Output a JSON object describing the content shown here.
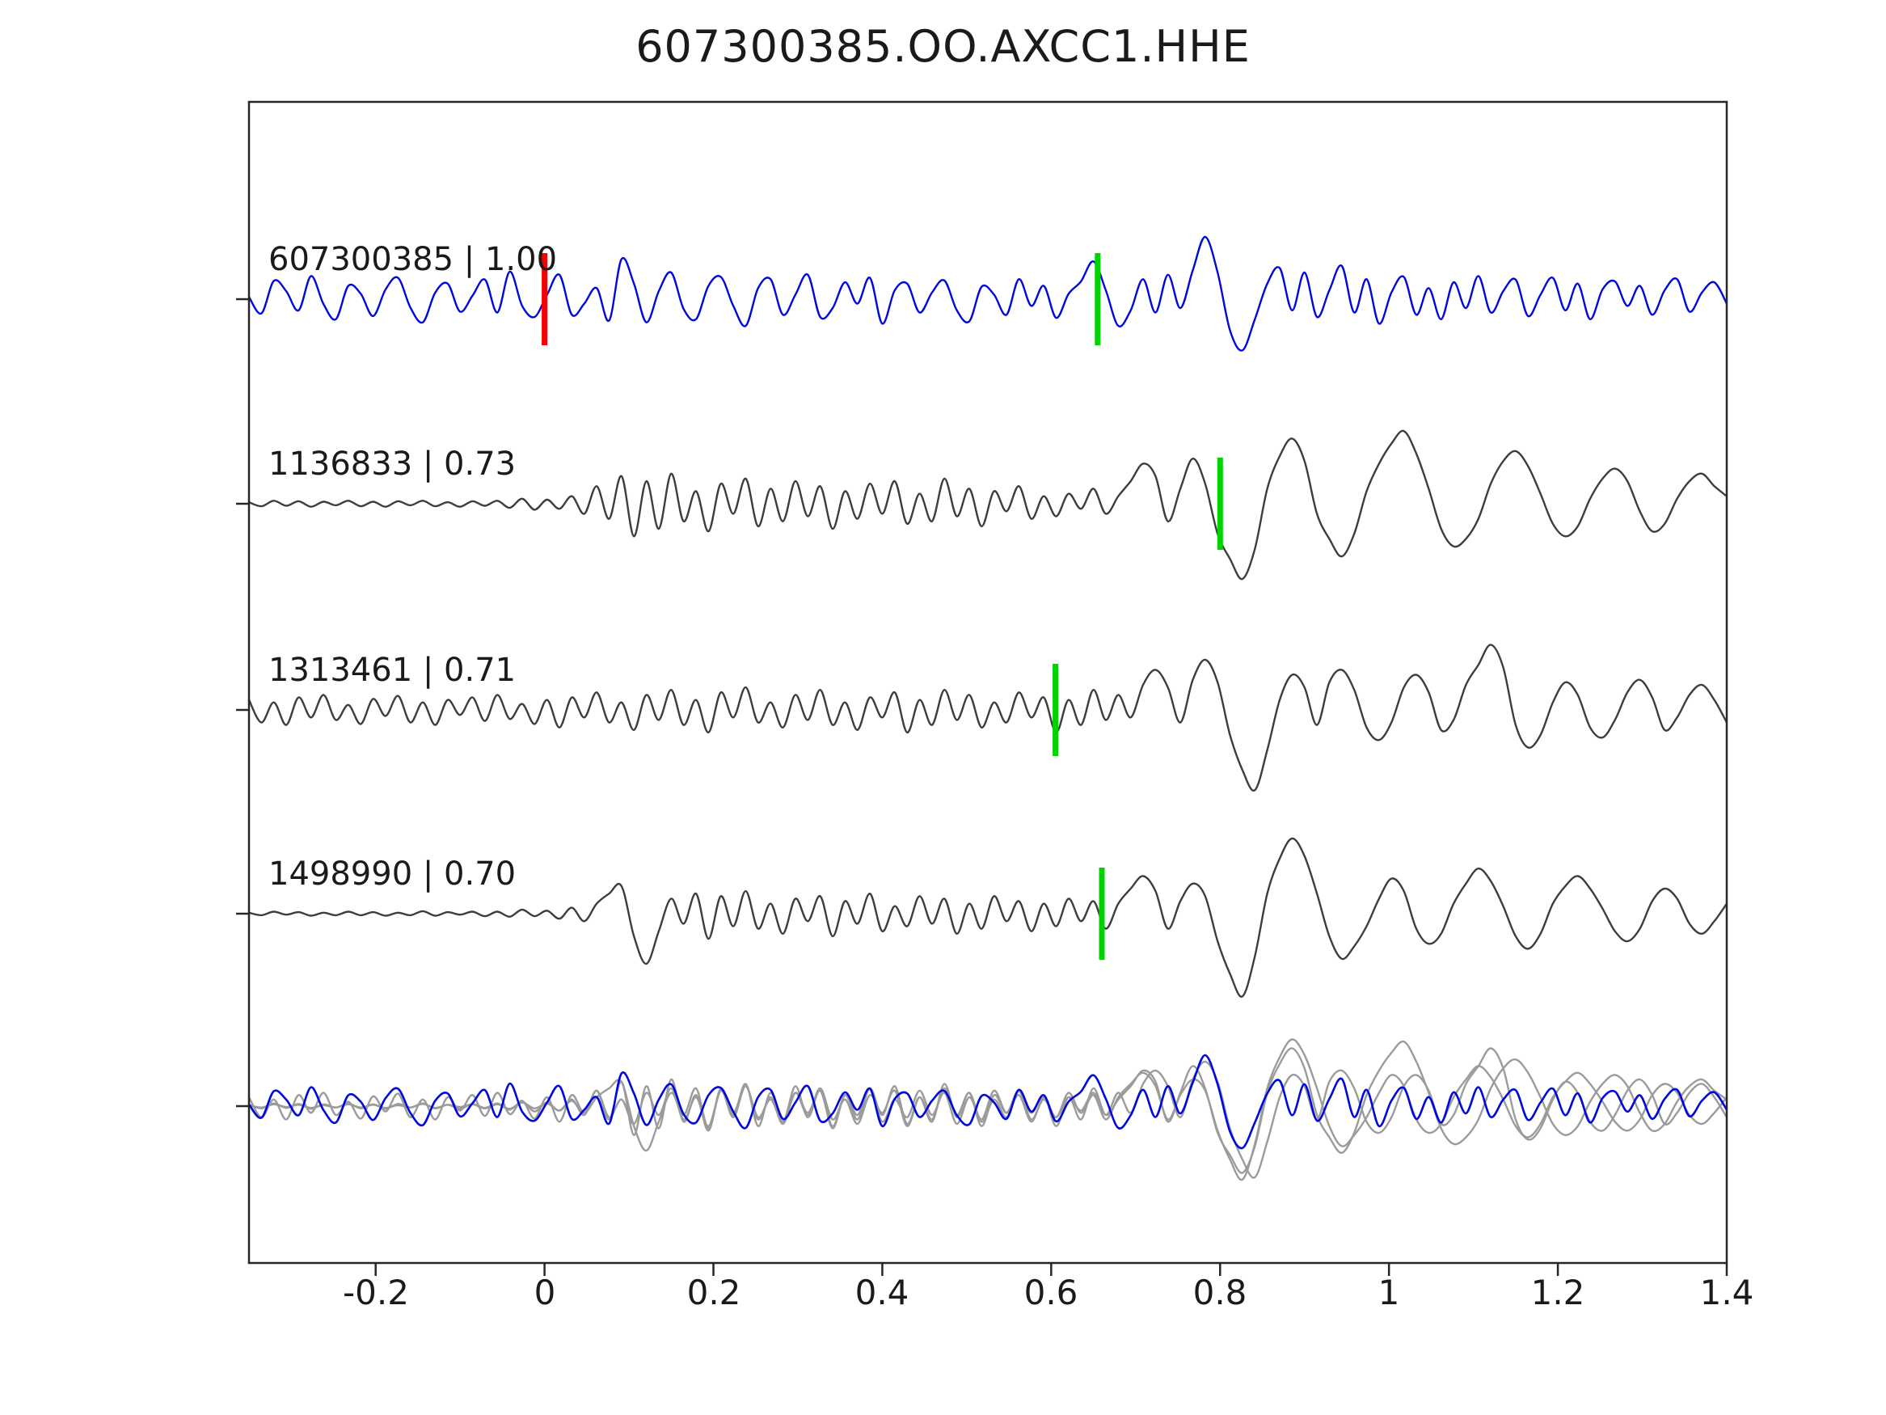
{
  "chart_data": {
    "type": "line",
    "title": "607300385.OO.AXCC1.HHE",
    "xlabel": "",
    "ylabel": "",
    "xlim": [
      -0.35,
      1.4
    ],
    "grid": false,
    "legend": "none",
    "x_ticks": [
      -0.2,
      0,
      0.2,
      0.4,
      0.6,
      0.8,
      1,
      1.2,
      1.4
    ],
    "x_tick_labels": [
      "-0.2",
      "0",
      "0.2",
      "0.4",
      "0.6",
      "0.8",
      "1",
      "1.2",
      "1.4"
    ],
    "colors": {
      "reference_trace": "#0008dd",
      "match_trace": "#3d3d3d",
      "overlay_gray": "#9b9b9b",
      "pick_red": "#f40000",
      "pick_green": "#00d300",
      "axis": "#262626"
    },
    "traces": [
      {
        "id": "607300385",
        "correlation": "1.00",
        "label": "607300385 | 1.00",
        "role": "reference",
        "pick_red": 0.0,
        "pick_green": 0.655,
        "values": [
          0.05,
          -0.32,
          0.41,
          0.18,
          -0.25,
          0.52,
          -0.11,
          -0.45,
          0.3,
          0.12,
          -0.38,
          0.22,
          0.48,
          -0.19,
          -0.52,
          0.15,
          0.35,
          -0.28,
          0.08,
          0.44,
          -0.3,
          0.62,
          -0.15,
          -0.4,
          0.1,
          0.55,
          -0.35,
          -0.1,
          0.25,
          -0.48,
          0.9,
          0.35,
          -0.52,
          0.18,
          0.6,
          -0.22,
          -0.45,
          0.3,
          0.5,
          -0.15,
          -0.6,
          0.25,
          0.45,
          -0.35,
          0.1,
          0.55,
          -0.4,
          -0.2,
          0.38,
          -0.1,
          0.48,
          -0.55,
          0.2,
          0.35,
          -0.3,
          0.15,
          0.42,
          -0.25,
          -0.5,
          0.28,
          0.1,
          -0.35,
          0.45,
          -0.15,
          0.3,
          -0.42,
          0.12,
          0.4,
          0.85,
          0.2,
          -0.6,
          -0.25,
          0.45,
          -0.3,
          0.55,
          -0.2,
          0.65,
          1.4,
          0.6,
          -0.7,
          -1.15,
          -0.45,
          0.35,
          0.7,
          -0.25,
          0.6,
          -0.4,
          0.2,
          0.75,
          -0.3,
          0.45,
          -0.55,
          0.15,
          0.5,
          -0.35,
          0.25,
          -0.45,
          0.38,
          -0.2,
          0.52,
          -0.3,
          0.18,
          0.44,
          -0.38,
          0.1,
          0.48,
          -0.25,
          0.35,
          -0.45,
          0.22,
          0.4,
          -0.15,
          0.3,
          -0.35,
          0.2,
          0.45,
          -0.28,
          0.15,
          0.38,
          -0.1
        ]
      },
      {
        "id": "1136833",
        "correlation": "0.73",
        "label": "1136833 | 0.73",
        "role": "match",
        "pick_green": 0.8,
        "values": [
          0.03,
          -0.05,
          0.06,
          -0.04,
          0.05,
          -0.06,
          0.04,
          -0.03,
          0.06,
          -0.05,
          0.04,
          -0.06,
          0.05,
          -0.03,
          0.06,
          -0.05,
          0.03,
          -0.06,
          0.05,
          -0.04,
          0.06,
          -0.08,
          0.1,
          -0.12,
          0.08,
          -0.1,
          0.15,
          -0.2,
          0.35,
          -0.3,
          0.55,
          -0.65,
          0.45,
          -0.5,
          0.6,
          -0.35,
          0.25,
          -0.55,
          0.4,
          -0.2,
          0.5,
          -0.45,
          0.3,
          -0.35,
          0.45,
          -0.25,
          0.35,
          -0.5,
          0.25,
          -0.3,
          0.4,
          -0.2,
          0.45,
          -0.4,
          0.2,
          -0.35,
          0.5,
          -0.25,
          0.3,
          -0.45,
          0.25,
          -0.15,
          0.35,
          -0.3,
          0.15,
          -0.25,
          0.2,
          -0.1,
          0.3,
          -0.2,
          0.15,
          0.45,
          0.8,
          0.55,
          -0.35,
          0.3,
          0.9,
          0.4,
          -0.6,
          -1.1,
          -1.5,
          -0.9,
          0.3,
          0.95,
          1.3,
          0.85,
          -0.2,
          -0.7,
          -1.05,
          -0.6,
          0.25,
          0.8,
          1.2,
          1.45,
          1.0,
          0.3,
          -0.5,
          -0.85,
          -0.7,
          -0.3,
          0.4,
          0.85,
          1.05,
          0.75,
          0.2,
          -0.4,
          -0.65,
          -0.45,
          0.1,
          0.5,
          0.7,
          0.45,
          -0.15,
          -0.55,
          -0.4,
          0.1,
          0.45,
          0.6,
          0.35,
          0.15
        ]
      },
      {
        "id": "1313461",
        "correlation": "0.71",
        "label": "1313461 | 0.71",
        "role": "match",
        "pick_green": 0.605,
        "values": [
          0.2,
          -0.25,
          0.15,
          -0.3,
          0.25,
          -0.15,
          0.3,
          -0.2,
          0.1,
          -0.28,
          0.22,
          -0.12,
          0.28,
          -0.25,
          0.15,
          -0.3,
          0.2,
          -0.1,
          0.25,
          -0.22,
          0.3,
          -0.18,
          0.12,
          -0.28,
          0.2,
          -0.35,
          0.25,
          -0.15,
          0.35,
          -0.25,
          0.15,
          -0.4,
          0.3,
          -0.2,
          0.4,
          -0.3,
          0.2,
          -0.45,
          0.35,
          -0.15,
          0.45,
          -0.25,
          0.15,
          -0.35,
          0.3,
          -0.2,
          0.4,
          -0.3,
          0.15,
          -0.4,
          0.25,
          -0.15,
          0.35,
          -0.45,
          0.2,
          -0.3,
          0.4,
          -0.2,
          0.3,
          -0.35,
          0.15,
          -0.25,
          0.35,
          -0.15,
          0.25,
          -0.45,
          0.2,
          -0.3,
          0.4,
          -0.2,
          0.3,
          -0.15,
          0.5,
          0.8,
          0.45,
          -0.25,
          0.6,
          1.0,
          0.55,
          -0.5,
          -1.2,
          -1.6,
          -0.8,
          0.2,
          0.7,
          0.45,
          -0.3,
          0.55,
          0.8,
          0.4,
          -0.35,
          -0.6,
          -0.25,
          0.45,
          0.7,
          0.35,
          -0.4,
          -0.2,
          0.5,
          0.9,
          1.3,
          0.85,
          -0.3,
          -0.75,
          -0.5,
          0.15,
          0.55,
          0.3,
          -0.35,
          -0.55,
          -0.2,
          0.35,
          0.6,
          0.25,
          -0.4,
          -0.15,
          0.3,
          0.5,
          0.2,
          -0.25
        ]
      },
      {
        "id": "1498990",
        "correlation": "0.70",
        "label": "1498990 | 0.70",
        "role": "match",
        "pick_green": 0.66,
        "values": [
          0.02,
          -0.03,
          0.04,
          -0.02,
          0.03,
          -0.04,
          0.02,
          -0.03,
          0.04,
          -0.03,
          0.03,
          -0.04,
          0.02,
          -0.03,
          0.05,
          -0.04,
          0.03,
          -0.02,
          0.04,
          -0.05,
          0.04,
          -0.06,
          0.08,
          -0.05,
          0.06,
          -0.1,
          0.12,
          -0.15,
          0.2,
          0.4,
          0.55,
          -0.45,
          -1.0,
          -0.35,
          0.3,
          -0.2,
          0.4,
          -0.5,
          0.35,
          -0.25,
          0.45,
          -0.3,
          0.2,
          -0.4,
          0.3,
          -0.15,
          0.35,
          -0.45,
          0.25,
          -0.2,
          0.4,
          -0.35,
          0.15,
          -0.25,
          0.35,
          -0.2,
          0.3,
          -0.4,
          0.2,
          -0.3,
          0.35,
          -0.15,
          0.25,
          -0.35,
          0.2,
          -0.25,
          0.3,
          -0.15,
          0.25,
          -0.3,
          0.2,
          0.5,
          0.75,
          0.45,
          -0.3,
          0.25,
          0.6,
          0.35,
          -0.55,
          -1.2,
          -1.65,
          -0.85,
          0.4,
          1.1,
          1.5,
          1.15,
          0.4,
          -0.45,
          -0.9,
          -0.65,
          -0.25,
          0.3,
          0.7,
          0.45,
          -0.3,
          -0.6,
          -0.4,
          0.2,
          0.6,
          0.9,
          0.65,
          0.15,
          -0.45,
          -0.7,
          -0.4,
          0.2,
          0.55,
          0.75,
          0.5,
          0.1,
          -0.35,
          -0.55,
          -0.3,
          0.25,
          0.5,
          0.3,
          -0.2,
          -0.4,
          -0.15,
          0.2
        ]
      }
    ],
    "overlay": {
      "description": "all traces superimposed",
      "gray_trace_ids": [
        "1136833",
        "1313461",
        "1498990"
      ],
      "blue_trace_id": "607300385"
    }
  }
}
